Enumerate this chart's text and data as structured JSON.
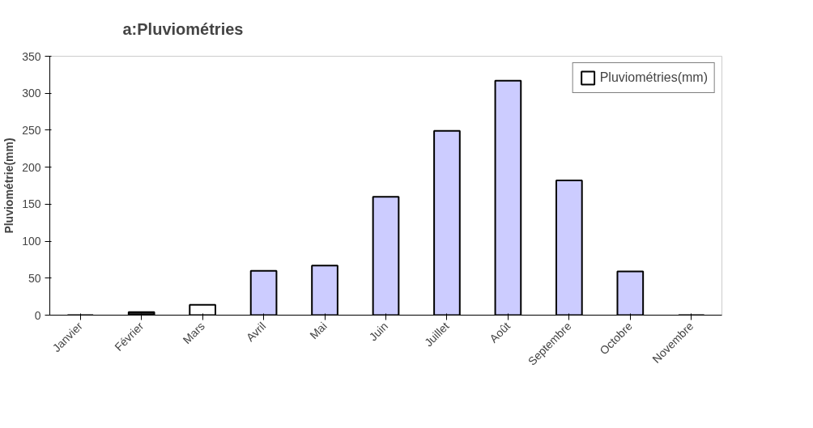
{
  "chart_data": {
    "type": "bar",
    "title": "a:Pluviométries",
    "ylabel": "Pluviométrie(mm)",
    "categories": [
      "Janvier",
      "Février",
      "Mars",
      "Avril",
      "Mai",
      "Juin",
      "Juillet",
      "Août",
      "Septembre",
      "Octobre",
      "Novembre"
    ],
    "series": [
      {
        "name": "Pluviométries(mm)",
        "color": "#ffffff",
        "values": [
          0,
          4,
          14,
          60,
          67,
          160,
          249,
          317,
          182,
          59,
          0
        ],
        "colors": [
          "#000000",
          "#222222",
          "#ffffff",
          "#ccccff",
          "#ccccff",
          "#ccccff",
          "#ccccff",
          "#ccccff",
          "#ccccff",
          "#ccccff",
          "#000000"
        ]
      }
    ],
    "ylim": [
      0,
      350
    ],
    "yticks": [
      0,
      50,
      100,
      150,
      200,
      250,
      300,
      350
    ],
    "grid": false,
    "legend": "top right"
  }
}
